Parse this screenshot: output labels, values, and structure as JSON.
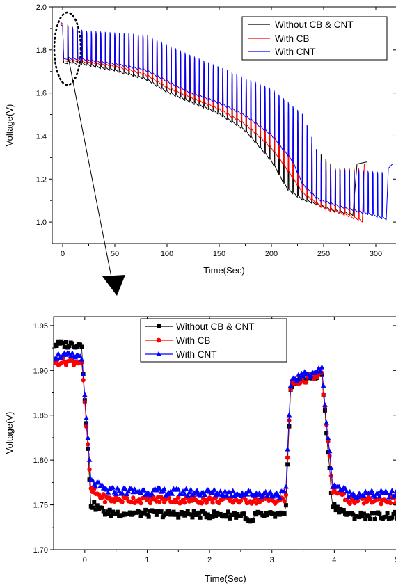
{
  "chart_data": [
    {
      "type": "line",
      "xlabel": "Time(Sec)",
      "ylabel": "Voltage(V)",
      "xlim": [
        -10,
        320
      ],
      "ylim": [
        0.9,
        2.0
      ],
      "xticks": [
        0,
        50,
        100,
        150,
        200,
        250,
        300
      ],
      "yticks": [
        1.0,
        1.2,
        1.4,
        1.6,
        1.8,
        2.0
      ],
      "ytick_labels": [
        "1.0",
        "1.2",
        "1.4",
        "1.6",
        "1.8",
        "2.0"
      ],
      "legend_position": "top-right",
      "grid": false,
      "pulse_period_sec": 4.8,
      "series": [
        {
          "name": "Without CB & CNT",
          "color": "#000000",
          "baseline": [
            [
              0,
              1.74
            ],
            [
              20,
              1.73
            ],
            [
              50,
              1.7
            ],
            [
              80,
              1.66
            ],
            [
              100,
              1.6
            ],
            [
              120,
              1.56
            ],
            [
              150,
              1.5
            ],
            [
              175,
              1.42
            ],
            [
              200,
              1.28
            ],
            [
              215,
              1.15
            ],
            [
              230,
              1.1
            ],
            [
              260,
              1.05
            ],
            [
              278,
              1.03
            ]
          ],
          "peak": [
            [
              0,
              1.93
            ],
            [
              20,
              1.87
            ],
            [
              80,
              1.85
            ],
            [
              120,
              1.75
            ],
            [
              150,
              1.68
            ],
            [
              200,
              1.55
            ],
            [
              230,
              1.4
            ],
            [
              260,
              1.25
            ],
            [
              278,
              1.25
            ]
          ],
          "end_time": 278,
          "final_rise": [
            [
              278,
              1.03
            ],
            [
              282,
              1.27
            ],
            [
              292,
              1.28
            ]
          ]
        },
        {
          "name": "With CB",
          "color": "#ff0000",
          "baseline": [
            [
              0,
              1.75
            ],
            [
              20,
              1.74
            ],
            [
              50,
              1.72
            ],
            [
              80,
              1.68
            ],
            [
              100,
              1.62
            ],
            [
              120,
              1.58
            ],
            [
              150,
              1.52
            ],
            [
              175,
              1.45
            ],
            [
              200,
              1.34
            ],
            [
              215,
              1.24
            ],
            [
              230,
              1.13
            ],
            [
              250,
              1.06
            ],
            [
              270,
              1.03
            ],
            [
              287,
              1.0
            ]
          ],
          "peak": [
            [
              0,
              1.93
            ],
            [
              20,
              1.88
            ],
            [
              80,
              1.86
            ],
            [
              120,
              1.77
            ],
            [
              150,
              1.7
            ],
            [
              200,
              1.58
            ],
            [
              230,
              1.45
            ],
            [
              250,
              1.25
            ],
            [
              287,
              1.25
            ]
          ],
          "end_time": 287,
          "final_rise": [
            [
              287,
              1.0
            ],
            [
              289,
              1.27
            ],
            [
              293,
              1.27
            ]
          ]
        },
        {
          "name": "With CNT",
          "color": "#0000ff",
          "baseline": [
            [
              0,
              1.76
            ],
            [
              20,
              1.75
            ],
            [
              50,
              1.73
            ],
            [
              80,
              1.7
            ],
            [
              100,
              1.65
            ],
            [
              120,
              1.6
            ],
            [
              150,
              1.55
            ],
            [
              175,
              1.49
            ],
            [
              200,
              1.4
            ],
            [
              220,
              1.28
            ],
            [
              230,
              1.17
            ],
            [
              245,
              1.1
            ],
            [
              270,
              1.06
            ],
            [
              295,
              1.03
            ],
            [
              310,
              1.01
            ]
          ],
          "peak": [
            [
              0,
              1.92
            ],
            [
              20,
              1.89
            ],
            [
              80,
              1.87
            ],
            [
              120,
              1.78
            ],
            [
              150,
              1.72
            ],
            [
              200,
              1.62
            ],
            [
              230,
              1.5
            ],
            [
              250,
              1.25
            ],
            [
              310,
              1.23
            ]
          ],
          "end_time": 310,
          "final_rise": [
            [
              310,
              1.01
            ],
            [
              312,
              1.25
            ],
            [
              316,
              1.27
            ]
          ]
        }
      ]
    },
    {
      "type": "scatter",
      "xlabel": "Time(Sec)",
      "ylabel": "Voltage(V)",
      "xlim": [
        -0.5,
        5.0
      ],
      "ylim": [
        1.7,
        1.96
      ],
      "xticks": [
        0,
        1,
        2,
        3,
        4,
        5
      ],
      "yticks": [
        1.7,
        1.75,
        1.8,
        1.85,
        1.9,
        1.95
      ],
      "ytick_labels": [
        "1.70",
        "1.75",
        "1.80",
        "1.85",
        "1.90",
        "1.95"
      ],
      "legend_position": "top-left",
      "grid": false,
      "sample_step_sec": 0.025,
      "noise_amplitude_v": 0.004,
      "pulse_start_sec": 3.22,
      "pulse_end_sec": 3.85,
      "series": [
        {
          "name": "Without CB & CNT",
          "color": "#000000",
          "marker": "square",
          "rest_voltage": 1.929,
          "settle_voltage": 1.741,
          "relax_voltage": 1.738,
          "pulse_voltage": 1.895
        },
        {
          "name": "With CB",
          "color": "#ff0000",
          "marker": "circle",
          "rest_voltage": 1.91,
          "settle_voltage": 1.756,
          "relax_voltage": 1.755,
          "pulse_voltage": 1.895
        },
        {
          "name": "With CNT",
          "color": "#0000ff",
          "marker": "triangle",
          "rest_voltage": 1.916,
          "settle_voltage": 1.766,
          "relax_voltage": 1.762,
          "pulse_voltage": 1.9
        }
      ]
    }
  ]
}
